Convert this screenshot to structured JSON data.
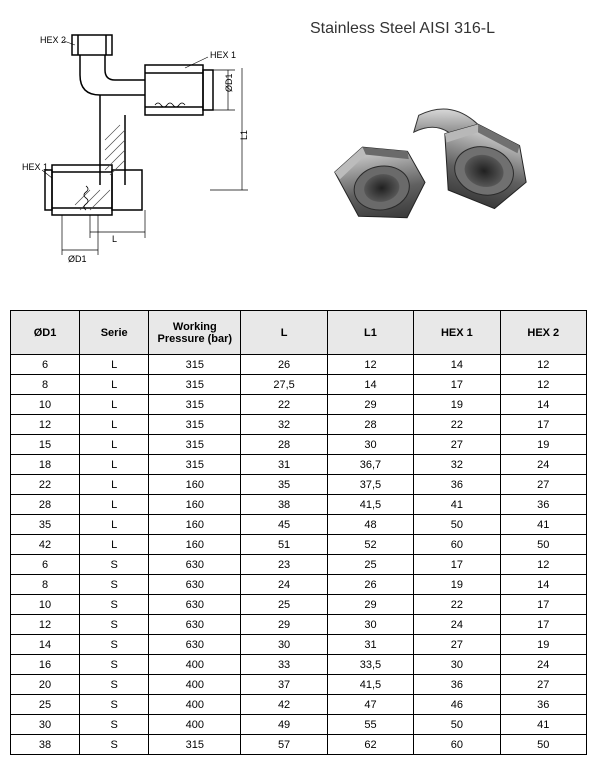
{
  "material_title": "Stainless Steel AISI 316-L",
  "drawing_labels": {
    "hex2": "HEX 2",
    "hex1_top": "HEX 1",
    "hex1_left": "HEX 1",
    "d1_right": "ØD1",
    "d1_bottom": "ØD1",
    "l": "L",
    "l1": "L1"
  },
  "colors": {
    "line": "#000000",
    "thin_line": "#333333",
    "hatch": "#444444",
    "render_light": "#c8c8c8",
    "render_mid": "#888888",
    "render_dark": "#505050",
    "render_darker": "#383838",
    "table_header_bg": "#e8e8e8",
    "border": "#000000"
  },
  "table": {
    "columns": [
      "ØD1",
      "Serie",
      "Working Pressure (bar)",
      "L",
      "L1",
      "HEX 1",
      "HEX 2"
    ],
    "col_widths_pct": [
      12,
      12,
      16,
      15,
      15,
      15,
      15
    ],
    "header_fontsize": 11,
    "cell_fontsize": 11,
    "rows": [
      [
        "6",
        "L",
        "315",
        "26",
        "12",
        "14",
        "12"
      ],
      [
        "8",
        "L",
        "315",
        "27,5",
        "14",
        "17",
        "12"
      ],
      [
        "10",
        "L",
        "315",
        "22",
        "29",
        "19",
        "14"
      ],
      [
        "12",
        "L",
        "315",
        "32",
        "28",
        "22",
        "17"
      ],
      [
        "15",
        "L",
        "315",
        "28",
        "30",
        "27",
        "19"
      ],
      [
        "18",
        "L",
        "315",
        "31",
        "36,7",
        "32",
        "24"
      ],
      [
        "22",
        "L",
        "160",
        "35",
        "37,5",
        "36",
        "27"
      ],
      [
        "28",
        "L",
        "160",
        "38",
        "41,5",
        "41",
        "36"
      ],
      [
        "35",
        "L",
        "160",
        "45",
        "48",
        "50",
        "41"
      ],
      [
        "42",
        "L",
        "160",
        "51",
        "52",
        "60",
        "50"
      ],
      [
        "6",
        "S",
        "630",
        "23",
        "25",
        "17",
        "12"
      ],
      [
        "8",
        "S",
        "630",
        "24",
        "26",
        "19",
        "14"
      ],
      [
        "10",
        "S",
        "630",
        "25",
        "29",
        "22",
        "17"
      ],
      [
        "12",
        "S",
        "630",
        "29",
        "30",
        "24",
        "17"
      ],
      [
        "14",
        "S",
        "630",
        "30",
        "31",
        "27",
        "19"
      ],
      [
        "16",
        "S",
        "400",
        "33",
        "33,5",
        "30",
        "24"
      ],
      [
        "20",
        "S",
        "400",
        "37",
        "41,5",
        "36",
        "27"
      ],
      [
        "25",
        "S",
        "400",
        "42",
        "47",
        "46",
        "36"
      ],
      [
        "30",
        "S",
        "400",
        "49",
        "55",
        "50",
        "41"
      ],
      [
        "38",
        "S",
        "315",
        "57",
        "62",
        "60",
        "50"
      ]
    ]
  }
}
